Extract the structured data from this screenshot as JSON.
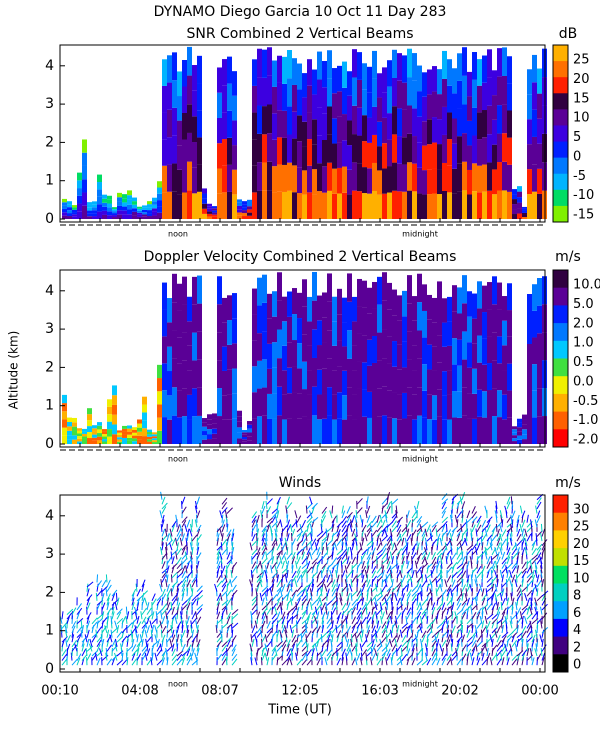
{
  "header": {
    "title": "DYNAMO Diego Garcia  10 Oct 11 Day 283"
  },
  "y_axis_label": "Altitude (km)",
  "panels": [
    {
      "title": "SNR Combined 2 Vertical Beams",
      "unit": "dB",
      "y_ticks": [
        "0",
        "1",
        "2",
        "3",
        "4"
      ],
      "colorbar": {
        "labels": [
          "25",
          "20",
          "15",
          "10",
          "5",
          "0",
          "-5",
          "-10",
          "-15"
        ],
        "colors": [
          "#ffb000",
          "#ff7000",
          "#ff2000",
          "#300040",
          "#5a0096",
          "#3c00e0",
          "#0020ff",
          "#0078ff",
          "#00b4ff",
          "#00dc64",
          "#80f000"
        ]
      },
      "markers": [
        "noon",
        "midnight"
      ]
    },
    {
      "title": "Doppler Velocity Combined 2 Vertical Beams",
      "unit": "m/s",
      "y_ticks": [
        "0",
        "1",
        "2",
        "3",
        "4"
      ],
      "colorbar": {
        "labels": [
          "10.0",
          "5.0",
          "2.0",
          "1.0",
          "0.5",
          "0.0",
          "-0.5",
          "-1.0",
          "-2.0"
        ],
        "colors": [
          "#300040",
          "#5a0096",
          "#0020ff",
          "#0078ff",
          "#00c8ff",
          "#40e040",
          "#f0f000",
          "#ffb000",
          "#ff6000",
          "#ff0000"
        ]
      },
      "markers": [
        "noon",
        "midnight"
      ]
    },
    {
      "title": "Winds",
      "unit": "m/s",
      "y_ticks": [
        "0",
        "1",
        "2",
        "3",
        "4"
      ],
      "colorbar": {
        "labels": [
          "30",
          "25",
          "20",
          "15",
          "10",
          "8",
          "6",
          "4",
          "2",
          "0"
        ],
        "colors": [
          "#ff2000",
          "#ff8000",
          "#ffd000",
          "#c0e000",
          "#00e060",
          "#00d0c0",
          "#00a0ff",
          "#0000ff",
          "#400080",
          "#000000"
        ]
      },
      "markers": [
        "noon",
        "midnight"
      ]
    }
  ],
  "x_axis": {
    "labels": [
      "00:10",
      "04:08",
      "08:07",
      "12:05",
      "16:03",
      "20:02",
      "00:00"
    ],
    "title": "Time (UT)"
  }
}
